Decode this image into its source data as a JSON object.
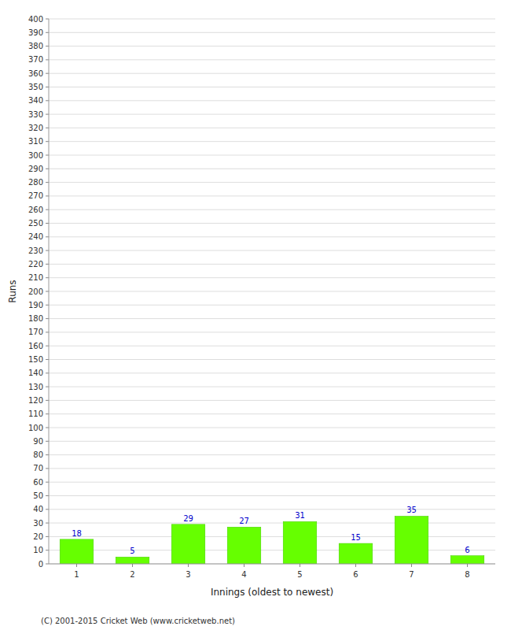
{
  "chart_data": {
    "type": "bar",
    "categories": [
      "1",
      "2",
      "3",
      "4",
      "5",
      "6",
      "7",
      "8"
    ],
    "values": [
      18,
      5,
      29,
      27,
      31,
      15,
      35,
      6
    ],
    "color": "#66ff00",
    "x_label": "Innings (oldest to newest)",
    "y_label": "Runs",
    "annotations": [
      "(C) 2001-2015 Cricket Web (www.cricketweb.net)"
    ],
    "ylim": [
      0,
      400
    ],
    "yticks": [
      0,
      10,
      20,
      30,
      40,
      50,
      60,
      70,
      80,
      90,
      100,
      110,
      120,
      130,
      140,
      150,
      160,
      170,
      180,
      190,
      200,
      210,
      220,
      230,
      240,
      250,
      260,
      270,
      280,
      290,
      300,
      310,
      320,
      330,
      340,
      350,
      360,
      370,
      380,
      390,
      400
    ],
    "grid": true,
    "data_labels": true
  }
}
